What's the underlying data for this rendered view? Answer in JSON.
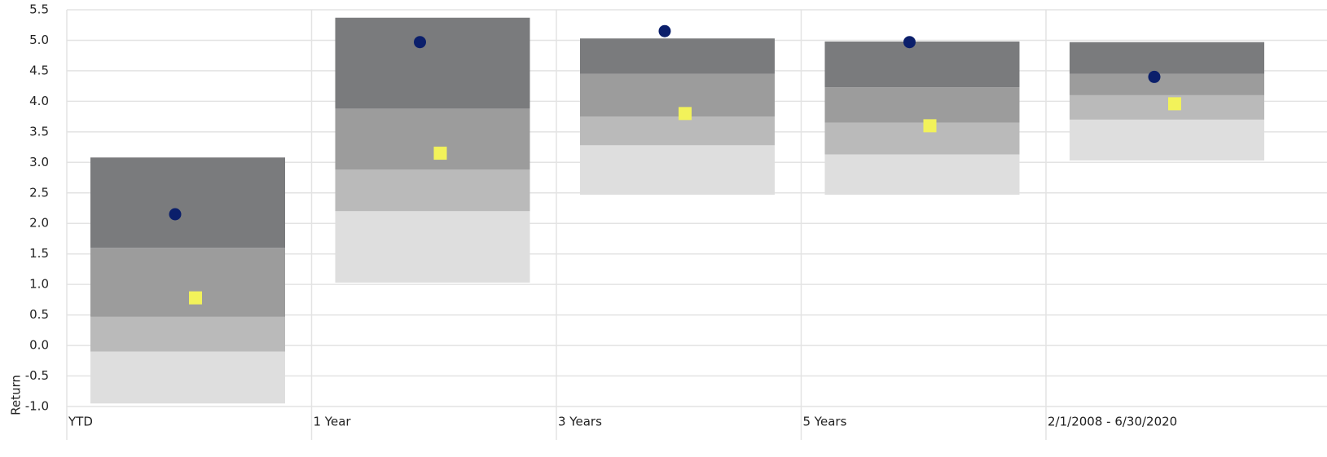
{
  "chart_data": {
    "type": "floating-bar",
    "y_label": "Return",
    "categories": [
      "YTD",
      "1 Year",
      "3 Years",
      "5 Years",
      "2/1/2008 - 6/30/2020"
    ],
    "ylim": [
      -1.0,
      5.5
    ],
    "yticks": [
      {
        "value": 5.5,
        "label": "5.5"
      },
      {
        "value": 5,
        "label": "5.0"
      },
      4.5,
      {
        "value": 4,
        "label": "4.0"
      },
      3.5,
      {
        "value": 3,
        "label": "3.0"
      },
      2.5,
      {
        "value": 2,
        "label": "2.0"
      },
      1.5,
      {
        "value": 1,
        "label": "1.0"
      },
      0.5,
      {
        "value": 0,
        "label": "0.0"
      },
      -0.5,
      {
        "value": -1,
        "label": "-1.0"
      }
    ],
    "grid": true,
    "base": [
      -0.95,
      1.03,
      2.47,
      2.47,
      3.03
    ],
    "segments": [
      {
        "color": "#dedede",
        "values": [
          0.85,
          1.17,
          0.81,
          0.66,
          0.67
        ]
      },
      {
        "color": "#bababa",
        "values": [
          0.57,
          0.68,
          0.47,
          0.52,
          0.4
        ]
      },
      {
        "color": "#9c9c9c",
        "values": [
          1.13,
          1.0,
          0.7,
          0.58,
          0.35
        ]
      },
      {
        "color": "#7a7b7d",
        "values": [
          1.48,
          1.49,
          0.58,
          0.75,
          0.52
        ]
      }
    ],
    "points": [
      {
        "color": "#0b1f6b",
        "marker": "circle",
        "values": [
          2.15,
          4.97,
          5.15,
          4.97,
          4.4
        ]
      },
      {
        "color": "#f2f25a",
        "marker": "square",
        "values": [
          0.78,
          3.15,
          3.8,
          3.6,
          3.96
        ]
      }
    ]
  }
}
